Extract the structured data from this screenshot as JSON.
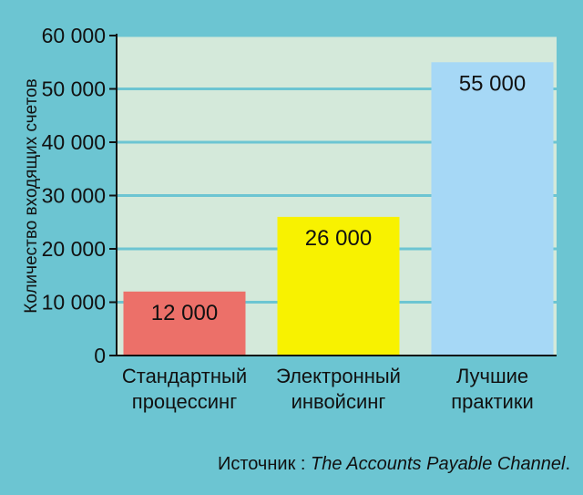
{
  "colors": {
    "background": "#6cc5d2",
    "plot_background": "#d4e9da",
    "grid": "#6cc5d2",
    "axis": "#111111"
  },
  "chart_data": {
    "type": "bar",
    "categories": [
      [
        "Стандартный",
        "процессинг"
      ],
      [
        "Электронный",
        "инвойсинг"
      ],
      [
        "Лучшие",
        "практики"
      ]
    ],
    "values": [
      12000,
      26000,
      55000
    ],
    "value_labels": [
      "12 000",
      "26 000",
      "55 000"
    ],
    "bar_colors": [
      "#ec7069",
      "#f8f200",
      "#a6d8f6"
    ],
    "ylabel": "Количество входящих счетов",
    "ylim": [
      0,
      60000
    ],
    "yticks": [
      0,
      10000,
      20000,
      30000,
      40000,
      50000,
      60000
    ],
    "ytick_labels": [
      "0",
      "10 000",
      "20 000",
      "30 000",
      "40 000",
      "50 000",
      "60 000"
    ],
    "grid": true
  },
  "source": {
    "prefix": "Источник : ",
    "title": "The Accounts Payable Channel",
    "suffix": "."
  }
}
